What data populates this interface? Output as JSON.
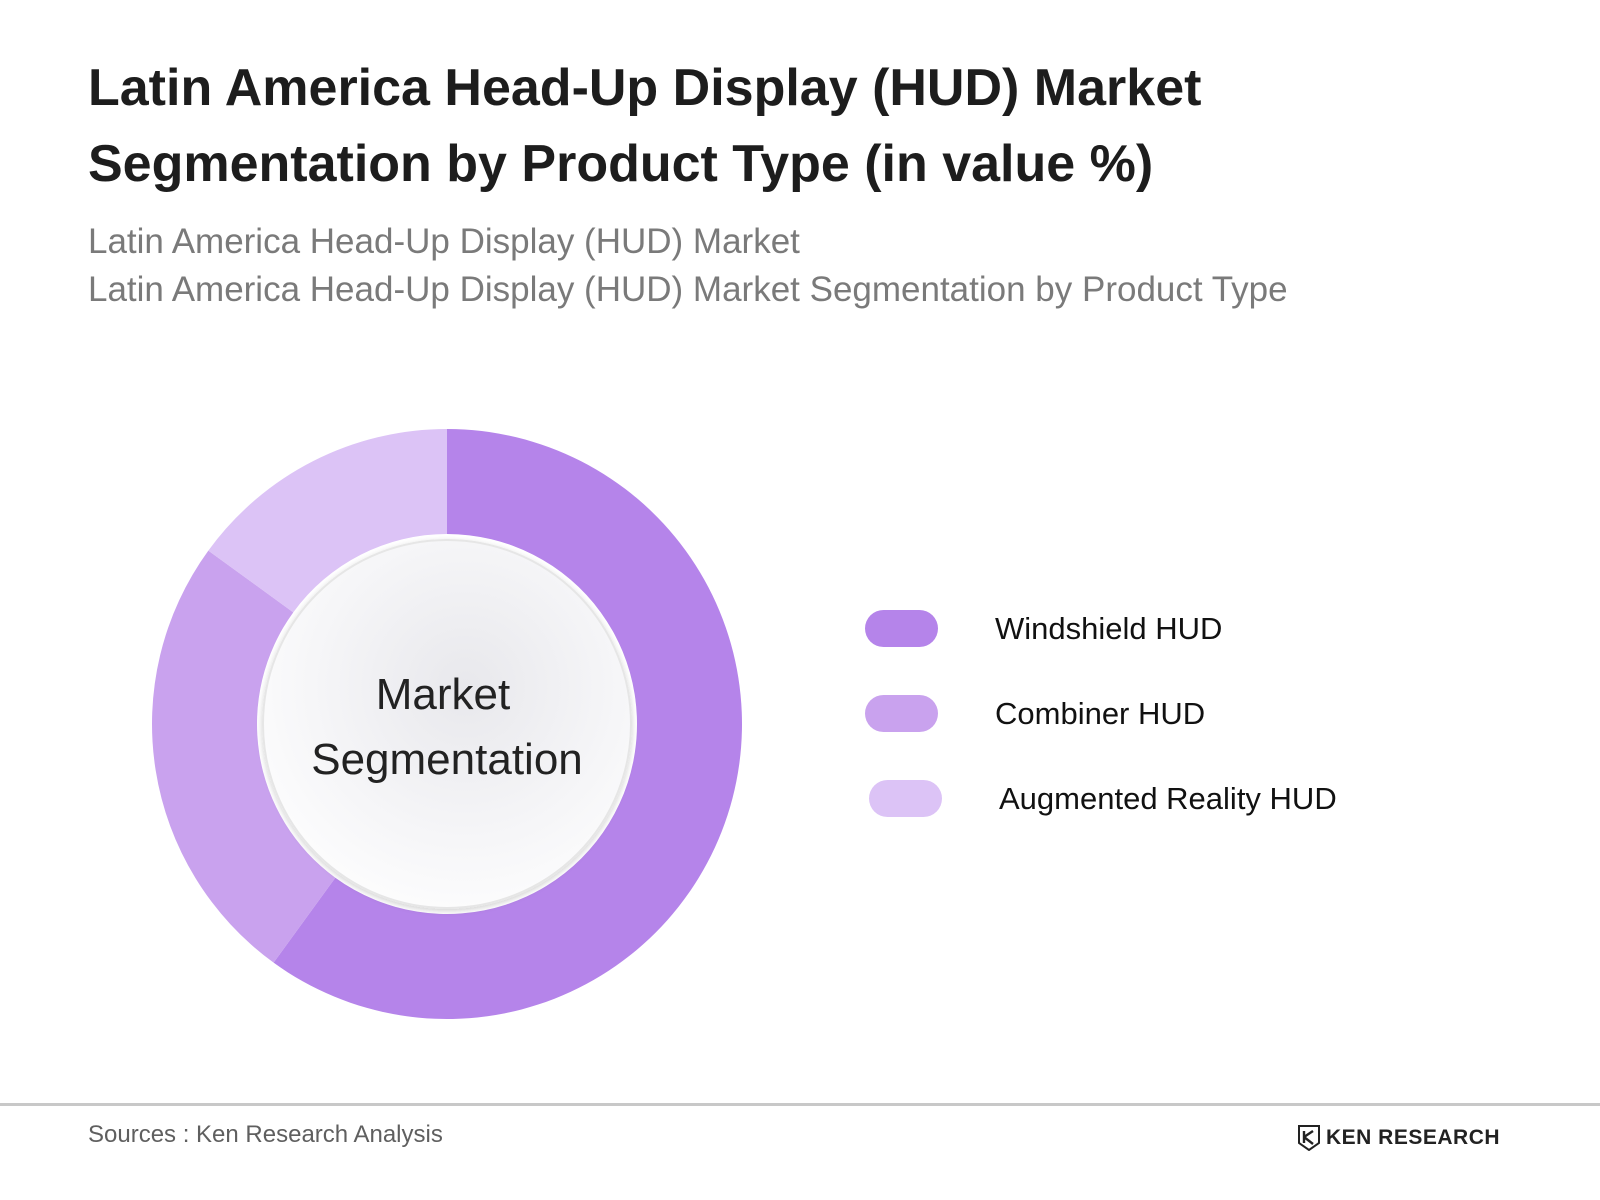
{
  "title": {
    "line1": "Latin America Head-Up Display (HUD) Market",
    "line2": "Segmentation by Product Type (in value %)"
  },
  "subtitle": {
    "line1": "Latin America Head-Up Display (HUD) Market",
    "line2": "Latin America Head-Up Display (HUD) Market Segmentation by Product Type"
  },
  "chart_data": {
    "type": "pie",
    "donut": true,
    "center_label": [
      "Market",
      "Segmentation"
    ],
    "categories": [
      "Windshield HUD",
      "Combiner HUD",
      "Augmented Reality HUD"
    ],
    "values": [
      60,
      25,
      15
    ],
    "colors": [
      "#b584ea",
      "#c9a2ee",
      "#dcc3f6"
    ],
    "legend": "right"
  },
  "footer": {
    "source": "Sources : Ken Research Analysis",
    "brand": "KEN RESEARCH",
    "brand_logo": "ken-research-k-logo"
  }
}
